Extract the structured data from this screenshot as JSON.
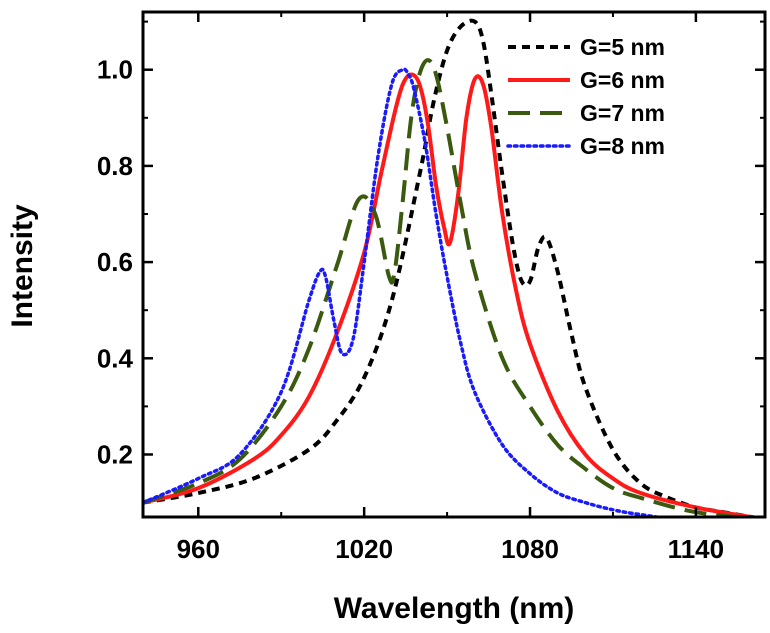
{
  "chart_data": {
    "type": "line",
    "title": "",
    "xlabel": "Wavelength (nm)",
    "ylabel": "Intensity",
    "xlim": [
      940,
      1165
    ],
    "ylim": [
      0.07,
      1.12
    ],
    "xticks": [
      960,
      1020,
      1080,
      1140
    ],
    "yticks": [
      0.2,
      0.4,
      0.6,
      0.8,
      1.0
    ],
    "ytick_labels": [
      "0.2",
      "0.4",
      "0.6",
      "0.8",
      "1.0"
    ],
    "legend_position": "top-right",
    "series": [
      {
        "name": "G=5 nm",
        "color": "#000000",
        "style": "short-dash",
        "x": [
          940,
          960,
          980,
          1000,
          1010,
          1020,
          1030,
          1040,
          1045,
          1050,
          1055,
          1060,
          1063,
          1066,
          1070,
          1074,
          1077,
          1080,
          1083,
          1086,
          1090,
          1095,
          1100,
          1110,
          1120,
          1130,
          1140,
          1150,
          1165
        ],
        "y": [
          0.1,
          0.12,
          0.15,
          0.21,
          0.27,
          0.36,
          0.52,
          0.78,
          0.93,
          1.04,
          1.09,
          1.1,
          1.06,
          0.95,
          0.78,
          0.63,
          0.56,
          0.56,
          0.63,
          0.65,
          0.58,
          0.45,
          0.34,
          0.21,
          0.14,
          0.11,
          0.09,
          0.08,
          0.065
        ]
      },
      {
        "name": "G=6 nm",
        "color": "#ff1a1a",
        "style": "solid",
        "x": [
          940,
          960,
          980,
          990,
          1000,
          1010,
          1020,
          1026,
          1031,
          1034,
          1037,
          1040,
          1043,
          1046,
          1049,
          1051,
          1054,
          1057,
          1060,
          1063,
          1066,
          1070,
          1075,
          1080,
          1090,
          1100,
          1110,
          1120,
          1140,
          1165
        ],
        "y": [
          0.1,
          0.13,
          0.19,
          0.24,
          0.32,
          0.45,
          0.62,
          0.78,
          0.91,
          0.97,
          0.99,
          0.97,
          0.89,
          0.76,
          0.67,
          0.64,
          0.74,
          0.9,
          0.98,
          0.97,
          0.88,
          0.7,
          0.54,
          0.43,
          0.29,
          0.2,
          0.15,
          0.12,
          0.09,
          0.065
        ]
      },
      {
        "name": "G=7 nm",
        "color": "#3a5a10",
        "style": "long-dash",
        "x": [
          940,
          960,
          975,
          990,
          1000,
          1010,
          1018,
          1024,
          1029,
          1031,
          1034,
          1037,
          1040,
          1043,
          1046,
          1050,
          1055,
          1060,
          1070,
          1080,
          1090,
          1100,
          1110,
          1120,
          1140,
          1165
        ],
        "y": [
          0.1,
          0.14,
          0.19,
          0.3,
          0.42,
          0.59,
          0.73,
          0.7,
          0.57,
          0.58,
          0.73,
          0.9,
          0.99,
          1.02,
          0.99,
          0.88,
          0.72,
          0.58,
          0.4,
          0.3,
          0.22,
          0.17,
          0.13,
          0.11,
          0.08,
          0.065
        ]
      },
      {
        "name": "G=8 nm",
        "color": "#1a1aff",
        "style": "dotted",
        "x": [
          940,
          960,
          975,
          990,
          1000,
          1004,
          1006,
          1009,
          1012,
          1016,
          1020,
          1025,
          1030,
          1034,
          1036,
          1038,
          1042,
          1046,
          1050,
          1055,
          1060,
          1070,
          1080,
          1090,
          1100,
          1110,
          1120,
          1140,
          1165
        ],
        "y": [
          0.1,
          0.15,
          0.2,
          0.33,
          0.52,
          0.58,
          0.57,
          0.48,
          0.41,
          0.44,
          0.6,
          0.82,
          0.97,
          1.0,
          0.99,
          0.96,
          0.85,
          0.7,
          0.57,
          0.43,
          0.33,
          0.22,
          0.16,
          0.12,
          0.1,
          0.085,
          0.075,
          0.06,
          0.055
        ]
      }
    ]
  }
}
